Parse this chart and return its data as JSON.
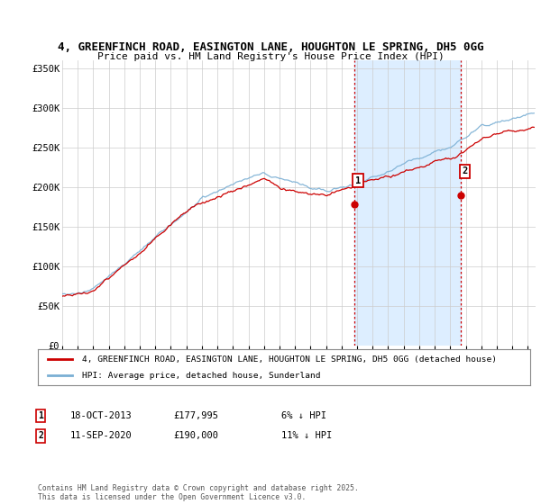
{
  "title": "4, GREENFINCH ROAD, EASINGTON LANE, HOUGHTON LE SPRING, DH5 0GG",
  "subtitle": "Price paid vs. HM Land Registry's House Price Index (HPI)",
  "ylabel_ticks": [
    "£0",
    "£50K",
    "£100K",
    "£150K",
    "£200K",
    "£250K",
    "£300K",
    "£350K"
  ],
  "ytick_values": [
    0,
    50000,
    100000,
    150000,
    200000,
    250000,
    300000,
    350000
  ],
  "ylim": [
    0,
    360000
  ],
  "xlim_start": 1995.0,
  "xlim_end": 2025.5,
  "xticks": [
    1995,
    1996,
    1997,
    1998,
    1999,
    2000,
    2001,
    2002,
    2003,
    2004,
    2005,
    2006,
    2007,
    2008,
    2009,
    2010,
    2011,
    2012,
    2013,
    2014,
    2015,
    2016,
    2017,
    2018,
    2019,
    2020,
    2021,
    2022,
    2023,
    2024,
    2025
  ],
  "hpi_color": "#7aafd4",
  "price_color": "#cc0000",
  "marker1_x": 2013.8,
  "marker1_y": 177995,
  "marker2_x": 2020.7,
  "marker2_y": 190000,
  "marker1_label": "1",
  "marker2_label": "2",
  "marker1_date": "18-OCT-2013",
  "marker1_price": "£177,995",
  "marker1_hpi": "6% ↓ HPI",
  "marker2_date": "11-SEP-2020",
  "marker2_price": "£190,000",
  "marker2_hpi": "11% ↓ HPI",
  "legend_entry1": "4, GREENFINCH ROAD, EASINGTON LANE, HOUGHTON LE SPRING, DH5 0GG (detached house)",
  "legend_entry2": "HPI: Average price, detached house, Sunderland",
  "footnote": "Contains HM Land Registry data © Crown copyright and database right 2025.\nThis data is licensed under the Open Government Licence v3.0.",
  "background_color": "#ffffff",
  "grid_color": "#cccccc",
  "vline_color": "#cc0000",
  "span_color": "#ddeeff",
  "legend_box_color": "#888888"
}
